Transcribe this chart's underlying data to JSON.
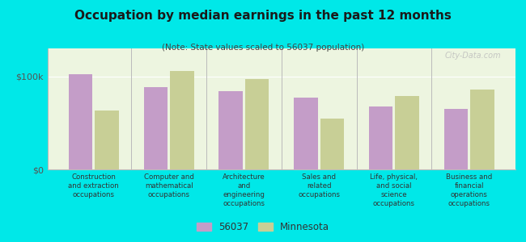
{
  "title": "Occupation by median earnings in the past 12 months",
  "subtitle": "(Note: State values scaled to 56037 population)",
  "background_color": "#00e8e8",
  "chart_bg_color": "#edf5e0",
  "bar_color_56037": "#c49dc8",
  "bar_color_mn": "#c8cf96",
  "categories": [
    "Construction\nand extraction\noccupations",
    "Computer and\nmathematical\noccupations",
    "Architecture\nand\nengineering\noccupations",
    "Sales and\nrelated\noccupations",
    "Life, physical,\nand social\nscience\noccupations",
    "Business and\nfinancial\noperations\noccupations"
  ],
  "values_56037": [
    102000,
    88000,
    84000,
    77000,
    68000,
    65000
  ],
  "values_mn": [
    63000,
    106000,
    97000,
    55000,
    79000,
    86000
  ],
  "ylim": [
    0,
    130000
  ],
  "yticks": [
    0,
    100000
  ],
  "ytick_labels": [
    "$0",
    "$100k"
  ],
  "legend_label_56037": "56037",
  "legend_label_mn": "Minnesota",
  "watermark": "City-Data.com"
}
